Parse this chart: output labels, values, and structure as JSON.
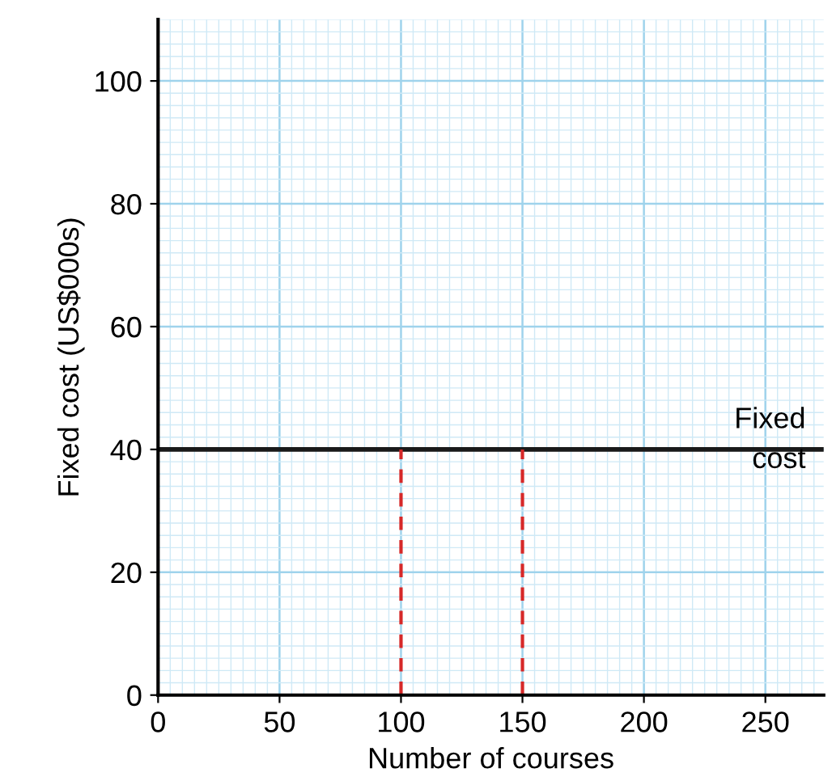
{
  "chart_data": {
    "type": "line",
    "xlabel": "Number of courses",
    "ylabel": "Fixed cost (US$000s)",
    "xlim": [
      0,
      274
    ],
    "ylim": [
      0,
      110
    ],
    "xticks": [
      0,
      50,
      100,
      150,
      200,
      250
    ],
    "yticks": [
      0,
      20,
      40,
      60,
      80,
      100
    ],
    "grid": true,
    "legend": false,
    "marker": "none",
    "series": [
      {
        "name": "Fixed\ncost",
        "color": "#1a1a1a",
        "x": [
          0,
          274
        ],
        "values": [
          40,
          40
        ],
        "line_style": "solid"
      },
      {
        "color": "#d62828",
        "x": [
          100,
          100
        ],
        "values": [
          0,
          40
        ],
        "line_style": "dashed"
      },
      {
        "color": "#d62828",
        "x": [
          150,
          150
        ],
        "values": [
          0,
          40
        ],
        "line_style": "dashed"
      }
    ]
  }
}
